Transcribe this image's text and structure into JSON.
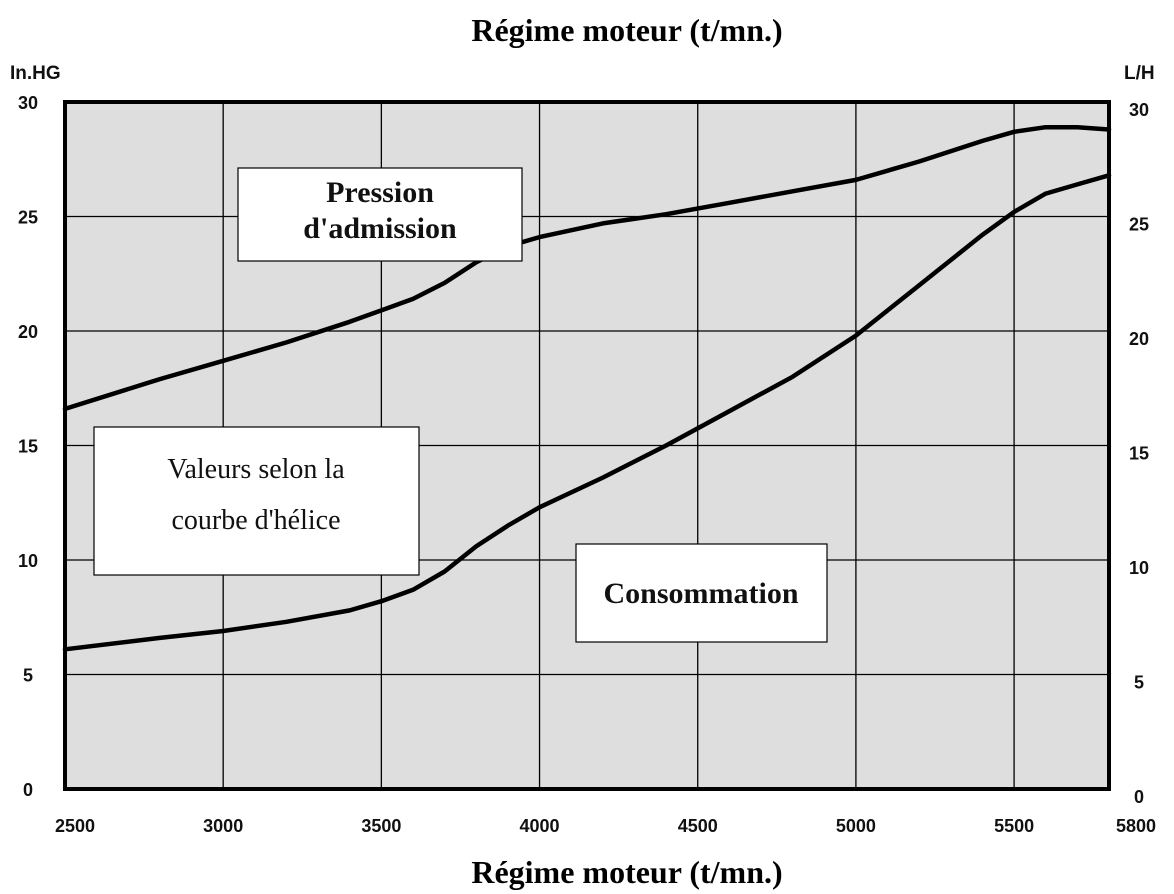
{
  "chart_data": {
    "type": "line",
    "title": "Régime moteur (t/mn.)",
    "xlabel": "Régime moteur (t/mn.)",
    "ylabel_left": "In.HG",
    "ylabel_right": "L/H",
    "xlim": [
      2500,
      5800
    ],
    "ylim": [
      0,
      30
    ],
    "ylim_right": [
      0,
      30
    ],
    "x_ticks": [
      2500,
      3000,
      3500,
      4000,
      4500,
      5000,
      5500,
      5800
    ],
    "y_ticks_left": [
      0,
      5,
      10,
      15,
      20,
      25,
      30
    ],
    "y_ticks_right": [
      0,
      5,
      10,
      15,
      20,
      25,
      30
    ],
    "grid": true,
    "background": "#dedede",
    "line_color": "#000000",
    "series": [
      {
        "name": "Pression d'admission",
        "axis": "left",
        "x": [
          2500,
          2800,
          3000,
          3200,
          3400,
          3600,
          3700,
          3800,
          3900,
          4000,
          4200,
          4400,
          4600,
          4800,
          5000,
          5200,
          5400,
          5500,
          5600,
          5700,
          5800
        ],
        "y": [
          16.6,
          17.9,
          18.7,
          19.5,
          20.4,
          21.4,
          22.1,
          23.0,
          23.7,
          24.1,
          24.7,
          25.1,
          25.6,
          26.1,
          26.6,
          27.4,
          28.3,
          28.7,
          28.9,
          28.9,
          28.8
        ]
      },
      {
        "name": "Consommation",
        "axis": "right",
        "x": [
          2500,
          2800,
          3000,
          3200,
          3400,
          3500,
          3600,
          3700,
          3800,
          3900,
          4000,
          4200,
          4400,
          4600,
          4800,
          5000,
          5200,
          5400,
          5500,
          5600,
          5700,
          5800
        ],
        "y": [
          6.1,
          6.6,
          6.9,
          7.3,
          7.8,
          8.2,
          8.7,
          9.5,
          10.6,
          11.5,
          12.3,
          13.6,
          15.0,
          16.5,
          18.0,
          19.8,
          22.0,
          24.2,
          25.2,
          26.0,
          26.4,
          26.8
        ]
      }
    ],
    "annotations": {
      "pression": [
        "Pression",
        "d'admission"
      ],
      "valeurs": [
        "Valeurs selon la",
        "courbe d'hélice"
      ],
      "consommation": "Consommation"
    }
  }
}
